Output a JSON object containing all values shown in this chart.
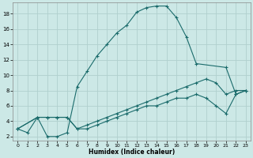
{
  "xlabel": "Humidex (Indice chaleur)",
  "bg_color": "#cce8e6",
  "grid_color": "#b0d0ce",
  "line_color": "#1a6b6b",
  "xlim": [
    -0.5,
    23.5
  ],
  "ylim": [
    1.5,
    19.5
  ],
  "xticks": [
    0,
    1,
    2,
    3,
    4,
    5,
    6,
    7,
    8,
    9,
    10,
    11,
    12,
    13,
    14,
    15,
    16,
    17,
    18,
    19,
    20,
    21,
    22,
    23
  ],
  "yticks": [
    2,
    4,
    6,
    8,
    10,
    12,
    14,
    16,
    18
  ],
  "curve1_x": [
    0,
    1,
    2,
    3,
    4,
    5,
    6,
    7,
    8,
    9,
    10,
    11,
    12,
    13,
    14,
    15,
    16,
    17,
    18,
    21,
    22,
    23
  ],
  "curve1_y": [
    3,
    2.5,
    4.5,
    2,
    2,
    2.5,
    8.5,
    10.5,
    12.5,
    14,
    15.5,
    16.5,
    18.2,
    18.8,
    19,
    19,
    17.5,
    15,
    11.5,
    11,
    7.5,
    8
  ],
  "curve2_x": [
    0,
    2,
    3,
    4,
    5,
    6,
    7,
    8,
    9,
    10,
    11,
    12,
    13,
    14,
    15,
    16,
    17,
    18,
    19,
    20,
    21,
    22,
    23
  ],
  "curve2_y": [
    3,
    4.5,
    4.5,
    4.5,
    4.5,
    3,
    3.5,
    4,
    4.5,
    5,
    5.5,
    6,
    6.5,
    7,
    7.5,
    8,
    8.5,
    9,
    9.5,
    9,
    7.5,
    8,
    8
  ],
  "curve3_x": [
    0,
    2,
    3,
    4,
    5,
    6,
    7,
    8,
    9,
    10,
    11,
    12,
    13,
    14,
    15,
    16,
    17,
    18,
    19,
    20,
    21,
    22,
    23
  ],
  "curve3_y": [
    3,
    4.5,
    4.5,
    4.5,
    4.5,
    3,
    3,
    3.5,
    4,
    4.5,
    5,
    5.5,
    6,
    6,
    6.5,
    7,
    7,
    7.5,
    7,
    6,
    5,
    7.5,
    8
  ]
}
